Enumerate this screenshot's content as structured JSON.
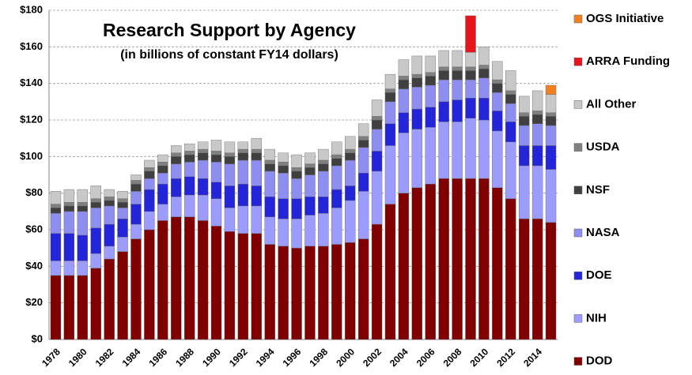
{
  "chart_data": {
    "type": "stacked_bar",
    "title": "Research Support by Agency",
    "subtitle": "(in billions of constant FY14 dollars)",
    "categories": [
      "1978",
      null,
      "1980",
      null,
      "1982",
      null,
      "1984",
      null,
      "1986",
      null,
      "1988",
      null,
      "1990",
      null,
      "1992",
      null,
      "1994",
      null,
      "1996",
      null,
      "1998",
      null,
      "2000",
      null,
      "2002",
      null,
      "2004",
      null,
      "2006",
      null,
      "2008",
      null,
      "2010",
      null,
      "2012",
      null,
      "2014",
      null
    ],
    "series": [
      {
        "name": "DOD",
        "color": "#800000",
        "values": [
          35,
          35,
          35,
          39,
          44,
          48,
          55,
          60,
          65,
          67,
          67,
          65,
          62,
          59,
          58,
          58,
          52,
          51,
          50,
          51,
          51,
          52,
          53,
          55,
          63,
          74,
          80,
          83,
          85,
          88,
          88,
          88,
          88,
          83,
          77,
          66,
          66,
          64
        ]
      },
      {
        "name": "NIH",
        "color": "#9c9cff",
        "values": [
          8,
          8,
          8,
          8,
          7,
          8,
          8,
          10,
          9,
          11,
          12,
          14,
          15,
          13,
          15,
          15,
          15,
          15,
          16,
          17,
          18,
          20,
          23,
          26,
          29,
          32,
          33,
          32,
          31,
          31,
          31,
          33,
          32,
          31,
          31,
          29,
          29,
          29
        ]
      },
      {
        "name": "DOE",
        "color": "#2424d8",
        "values": [
          15,
          15,
          14,
          14,
          12,
          10,
          11,
          12,
          11,
          10,
          10,
          9,
          9,
          12,
          12,
          11,
          11,
          11,
          11,
          10,
          9,
          10,
          8,
          10,
          11,
          12,
          11,
          11,
          11,
          11,
          12,
          11,
          12,
          11,
          11,
          11,
          11,
          13
        ]
      },
      {
        "name": "NASA",
        "color": "#8e8ef0",
        "values": [
          11,
          12,
          13,
          11,
          10,
          6,
          7,
          6,
          6,
          8,
          8,
          10,
          11,
          12,
          13,
          14,
          14,
          14,
          11,
          12,
          14,
          13,
          14,
          14,
          12,
          12,
          13,
          12,
          12,
          12,
          11,
          10,
          11,
          10,
          10,
          11,
          12,
          11
        ]
      },
      {
        "name": "NSF",
        "color": "#404040",
        "values": [
          3,
          3,
          3,
          3,
          3,
          3,
          4,
          4,
          4,
          4,
          4,
          4,
          4,
          4,
          4,
          4,
          4,
          4,
          4,
          4,
          4,
          4,
          4,
          4,
          5,
          5,
          5,
          5,
          5,
          5,
          5,
          5,
          5,
          5,
          5,
          5,
          5,
          5
        ]
      },
      {
        "name": "USDA",
        "color": "#808080",
        "values": [
          2,
          2,
          2,
          2,
          2,
          2,
          2,
          2,
          2,
          2,
          2,
          2,
          2,
          2,
          2,
          2,
          2,
          2,
          2,
          2,
          2,
          2,
          2,
          2,
          2,
          2,
          2,
          2,
          2,
          2,
          2,
          2,
          2,
          2,
          2,
          2,
          2,
          2
        ]
      },
      {
        "name": "All Other",
        "color": "#c8c8c8",
        "values": [
          7,
          7,
          7,
          7,
          4,
          4,
          3,
          4,
          4,
          4,
          4,
          4,
          6,
          6,
          4,
          6,
          6,
          5,
          7,
          6,
          6,
          7,
          7,
          7,
          9,
          8,
          9,
          10,
          9,
          9,
          9,
          8,
          10,
          10,
          11,
          9,
          11,
          10
        ]
      },
      {
        "name": "ARRA Funding",
        "color": "#e8141c",
        "values": [
          0,
          0,
          0,
          0,
          0,
          0,
          0,
          0,
          0,
          0,
          0,
          0,
          0,
          0,
          0,
          0,
          0,
          0,
          0,
          0,
          0,
          0,
          0,
          0,
          0,
          0,
          0,
          0,
          0,
          0,
          0,
          20,
          0,
          0,
          0,
          0,
          0,
          0
        ]
      },
      {
        "name": "OGS Initiative",
        "color": "#f08020",
        "values": [
          0,
          0,
          0,
          0,
          0,
          0,
          0,
          0,
          0,
          0,
          0,
          0,
          0,
          0,
          0,
          0,
          0,
          0,
          0,
          0,
          0,
          0,
          0,
          0,
          0,
          0,
          0,
          0,
          0,
          0,
          0,
          0,
          0,
          0,
          0,
          0,
          0,
          5
        ]
      }
    ],
    "ylim": [
      0,
      180
    ],
    "yticks": [
      {
        "value": 0,
        "label": "$0"
      },
      {
        "value": 20,
        "label": "$20"
      },
      {
        "value": 40,
        "label": "$40"
      },
      {
        "value": 60,
        "label": "$60"
      },
      {
        "value": 80,
        "label": "$80"
      },
      {
        "value": 100,
        "label": "$100"
      },
      {
        "value": 120,
        "label": "$120"
      },
      {
        "value": 140,
        "label": "$140"
      },
      {
        "value": 160,
        "label": "$160"
      },
      {
        "value": 180,
        "label": "$180"
      }
    ],
    "grid": true,
    "legend": "right"
  }
}
